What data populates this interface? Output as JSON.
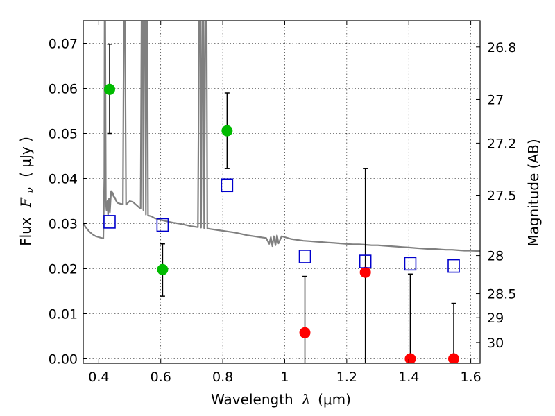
{
  "chart_data": {
    "type": "scatter",
    "xlabel": "Wavelength",
    "xlabel_symbol": "λ",
    "xlabel_unit": "(μm)",
    "ylabel": "Flux",
    "ylabel_symbol": "F",
    "ylabel_symbol_sub": "ν",
    "ylabel_unit": "( μJy )",
    "y2label": "Magnitude (AB)",
    "xlim": [
      0.35,
      1.63
    ],
    "ylim": [
      -0.001,
      0.075
    ],
    "grid": true,
    "grid_style": "dotted",
    "x_ticks": [
      {
        "value": 0.4,
        "label": "0.4"
      },
      {
        "value": 0.6,
        "label": "0.6"
      },
      {
        "value": 0.8,
        "label": "0.8"
      },
      {
        "value": 1.0,
        "label": "1"
      },
      {
        "value": 1.2,
        "label": "1.2"
      },
      {
        "value": 1.4,
        "label": "1.4"
      },
      {
        "value": 1.6,
        "label": "1.6"
      }
    ],
    "y_ticks": [
      {
        "value": 0.0,
        "label": "0.00"
      },
      {
        "value": 0.01,
        "label": "0.01"
      },
      {
        "value": 0.02,
        "label": "0.02"
      },
      {
        "value": 0.03,
        "label": "0.03"
      },
      {
        "value": 0.04,
        "label": "0.04"
      },
      {
        "value": 0.05,
        "label": "0.05"
      },
      {
        "value": 0.06,
        "label": "0.06"
      },
      {
        "value": 0.07,
        "label": "0.07"
      }
    ],
    "y2_ticks": [
      {
        "value": 26.8,
        "label": "26.8"
      },
      {
        "value": 27.0,
        "label": "27"
      },
      {
        "value": 27.2,
        "label": "27.2"
      },
      {
        "value": 27.5,
        "label": "27.5"
      },
      {
        "value": 28.0,
        "label": "28"
      },
      {
        "value": 28.5,
        "label": "28.5"
      },
      {
        "value": 29.0,
        "label": "29"
      },
      {
        "value": 30.0,
        "label": "30"
      }
    ],
    "series": [
      {
        "kind": "detection",
        "color": "#00bb00",
        "marker": "circle",
        "points": [
          {
            "x": 0.435,
            "y": 0.0598,
            "err_lo": 0.05,
            "err_hi": 0.0698
          },
          {
            "x": 0.606,
            "y": 0.0198,
            "err_lo": 0.0139,
            "err_hi": 0.0255
          },
          {
            "x": 0.814,
            "y": 0.0506,
            "err_lo": 0.0422,
            "err_hi": 0.059
          }
        ]
      },
      {
        "kind": "non-detection",
        "color": "#ff0000",
        "marker": "circle",
        "points": [
          {
            "x": 1.065,
            "y": 0.0058,
            "err_lo": -0.001,
            "err_hi": 0.0183
          },
          {
            "x": 1.26,
            "y": 0.0192,
            "err_lo": -0.001,
            "err_hi": 0.0422
          },
          {
            "x": 1.405,
            "y": 0.0,
            "err_lo": -0.001,
            "err_hi": 0.0188
          },
          {
            "x": 1.545,
            "y": 0.0,
            "err_lo": -0.001,
            "err_hi": 0.0123
          }
        ]
      },
      {
        "kind": "model-photometry",
        "color": "#0000cc",
        "marker": "open-square",
        "points": [
          {
            "x": 0.435,
            "y": 0.0304
          },
          {
            "x": 0.606,
            "y": 0.0297
          },
          {
            "x": 0.814,
            "y": 0.0385
          },
          {
            "x": 1.065,
            "y": 0.0227
          },
          {
            "x": 1.26,
            "y": 0.0216
          },
          {
            "x": 1.405,
            "y": 0.0211
          },
          {
            "x": 1.545,
            "y": 0.0206
          }
        ]
      }
    ],
    "model_spectrum": {
      "color": "#808080",
      "points": [
        [
          0.35,
          0.03
        ],
        [
          0.36,
          0.029
        ],
        [
          0.37,
          0.0282
        ],
        [
          0.38,
          0.0276
        ],
        [
          0.39,
          0.0272
        ],
        [
          0.4,
          0.027
        ],
        [
          0.41,
          0.0268
        ],
        [
          0.415,
          0.0267
        ],
        [
          0.418,
          0.04
        ],
        [
          0.419,
          0.075
        ],
        [
          0.421,
          0.075
        ],
        [
          0.423,
          0.035
        ],
        [
          0.425,
          0.033
        ],
        [
          0.428,
          0.035
        ],
        [
          0.43,
          0.032
        ],
        [
          0.433,
          0.0355
        ],
        [
          0.436,
          0.0325
        ],
        [
          0.44,
          0.0372
        ],
        [
          0.445,
          0.0368
        ],
        [
          0.448,
          0.036
        ],
        [
          0.452,
          0.0358
        ],
        [
          0.455,
          0.0352
        ],
        [
          0.46,
          0.0346
        ],
        [
          0.47,
          0.0344
        ],
        [
          0.478,
          0.0343
        ],
        [
          0.481,
          0.075
        ],
        [
          0.485,
          0.075
        ],
        [
          0.488,
          0.0342
        ],
        [
          0.5,
          0.035
        ],
        [
          0.51,
          0.0348
        ],
        [
          0.52,
          0.0342
        ],
        [
          0.53,
          0.0336
        ],
        [
          0.535,
          0.0334
        ],
        [
          0.538,
          0.075
        ],
        [
          0.542,
          0.075
        ],
        [
          0.544,
          0.033
        ],
        [
          0.546,
          0.075
        ],
        [
          0.55,
          0.075
        ],
        [
          0.552,
          0.032
        ],
        [
          0.554,
          0.075
        ],
        [
          0.557,
          0.075
        ],
        [
          0.559,
          0.0318
        ],
        [
          0.57,
          0.0316
        ],
        [
          0.58,
          0.0312
        ],
        [
          0.6,
          0.0308
        ],
        [
          0.62,
          0.0305
        ],
        [
          0.64,
          0.0302
        ],
        [
          0.66,
          0.03
        ],
        [
          0.68,
          0.0297
        ],
        [
          0.7,
          0.0294
        ],
        [
          0.72,
          0.0292
        ],
        [
          0.724,
          0.075
        ],
        [
          0.728,
          0.075
        ],
        [
          0.73,
          0.0291
        ],
        [
          0.734,
          0.075
        ],
        [
          0.738,
          0.075
        ],
        [
          0.74,
          0.029
        ],
        [
          0.744,
          0.075
        ],
        [
          0.748,
          0.075
        ],
        [
          0.75,
          0.0289
        ],
        [
          0.76,
          0.0288
        ],
        [
          0.78,
          0.0286
        ],
        [
          0.8,
          0.0284
        ],
        [
          0.82,
          0.0282
        ],
        [
          0.84,
          0.028
        ],
        [
          0.86,
          0.0277
        ],
        [
          0.88,
          0.0274
        ],
        [
          0.9,
          0.0272
        ],
        [
          0.92,
          0.027
        ],
        [
          0.94,
          0.0268
        ],
        [
          0.95,
          0.0255
        ],
        [
          0.955,
          0.027
        ],
        [
          0.96,
          0.025
        ],
        [
          0.965,
          0.0272
        ],
        [
          0.97,
          0.0252
        ],
        [
          0.975,
          0.0274
        ],
        [
          0.98,
          0.0256
        ],
        [
          0.99,
          0.0272
        ],
        [
          1.0,
          0.027
        ],
        [
          1.02,
          0.0266
        ],
        [
          1.04,
          0.0264
        ],
        [
          1.06,
          0.0262
        ],
        [
          1.08,
          0.0261
        ],
        [
          1.1,
          0.026
        ],
        [
          1.12,
          0.0259
        ],
        [
          1.14,
          0.0258
        ],
        [
          1.16,
          0.0257
        ],
        [
          1.18,
          0.0256
        ],
        [
          1.2,
          0.0255
        ],
        [
          1.22,
          0.0254
        ],
        [
          1.24,
          0.0254
        ],
        [
          1.26,
          0.0253
        ],
        [
          1.28,
          0.0252
        ],
        [
          1.3,
          0.0252
        ],
        [
          1.32,
          0.0251
        ],
        [
          1.34,
          0.025
        ],
        [
          1.36,
          0.0249
        ],
        [
          1.38,
          0.0248
        ],
        [
          1.4,
          0.0247
        ],
        [
          1.42,
          0.0246
        ],
        [
          1.44,
          0.0245
        ],
        [
          1.46,
          0.0244
        ],
        [
          1.48,
          0.0244
        ],
        [
          1.5,
          0.0243
        ],
        [
          1.52,
          0.0242
        ],
        [
          1.54,
          0.0242
        ],
        [
          1.56,
          0.0241
        ],
        [
          1.58,
          0.024
        ],
        [
          1.6,
          0.024
        ],
        [
          1.63,
          0.0239
        ]
      ]
    }
  }
}
